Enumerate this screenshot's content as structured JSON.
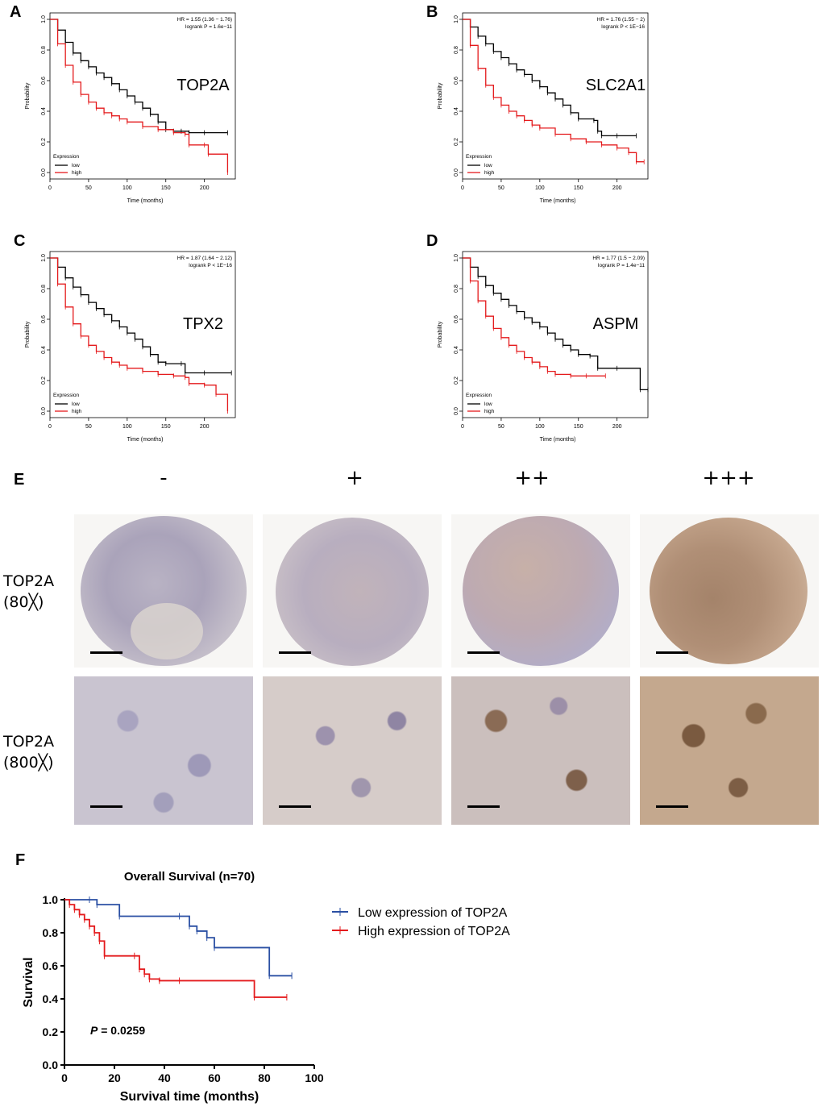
{
  "panels": {
    "A": "A",
    "B": "B",
    "C": "C",
    "D": "D",
    "E": "E",
    "F": "F"
  },
  "km_common": {
    "ylabel": "Probability",
    "xlabel": "Time (months)",
    "legend_title": "Expression",
    "legend_low": "low",
    "legend_high": "high",
    "yticks": [
      "0.0",
      "0.2",
      "0.4",
      "0.6",
      "0.8",
      "1.0"
    ],
    "xticks": [
      "0",
      "50",
      "100",
      "150",
      "200"
    ]
  },
  "chart_data": [
    {
      "type": "line",
      "panel": "A",
      "gene": "TOP2A",
      "hr_text": "HR = 1.55 (1.36 − 1.76)",
      "p_text": "logrank P = 1.6e−11",
      "xlabel": "Time (months)",
      "ylabel": "Probability",
      "xlim": [
        0,
        240
      ],
      "ylim": [
        0,
        1
      ],
      "series": [
        {
          "name": "low",
          "color": "#000000",
          "x": [
            0,
            10,
            20,
            30,
            40,
            50,
            60,
            70,
            80,
            90,
            100,
            110,
            120,
            130,
            140,
            150,
            160,
            170,
            180,
            200,
            230
          ],
          "y": [
            1.0,
            0.93,
            0.85,
            0.78,
            0.73,
            0.69,
            0.65,
            0.62,
            0.58,
            0.54,
            0.5,
            0.46,
            0.42,
            0.38,
            0.33,
            0.28,
            0.27,
            0.27,
            0.26,
            0.26,
            0.26
          ]
        },
        {
          "name": "high",
          "color": "#e41a1c",
          "x": [
            0,
            10,
            20,
            30,
            40,
            50,
            60,
            70,
            80,
            90,
            100,
            120,
            140,
            160,
            175,
            180,
            200,
            205,
            230
          ],
          "y": [
            1.0,
            0.84,
            0.7,
            0.59,
            0.51,
            0.46,
            0.42,
            0.39,
            0.37,
            0.35,
            0.33,
            0.3,
            0.28,
            0.26,
            0.25,
            0.18,
            0.18,
            0.12,
            0.0
          ]
        }
      ]
    },
    {
      "type": "line",
      "panel": "B",
      "gene": "SLC2A1",
      "hr_text": "HR = 1.76 (1.55 − 2)",
      "p_text": "logrank P < 1E−16",
      "xlabel": "Time (months)",
      "ylabel": "Probability",
      "xlim": [
        0,
        240
      ],
      "ylim": [
        0,
        1
      ],
      "series": [
        {
          "name": "low",
          "color": "#000000",
          "x": [
            0,
            10,
            20,
            30,
            40,
            50,
            60,
            70,
            80,
            90,
            100,
            110,
            120,
            130,
            140,
            150,
            170,
            175,
            180,
            200,
            225
          ],
          "y": [
            1.0,
            0.95,
            0.89,
            0.84,
            0.79,
            0.75,
            0.71,
            0.67,
            0.64,
            0.6,
            0.56,
            0.52,
            0.48,
            0.44,
            0.39,
            0.35,
            0.34,
            0.27,
            0.24,
            0.24,
            0.24
          ]
        },
        {
          "name": "high",
          "color": "#e41a1c",
          "x": [
            0,
            10,
            20,
            30,
            40,
            50,
            60,
            70,
            80,
            90,
            100,
            120,
            140,
            160,
            180,
            200,
            215,
            225,
            235
          ],
          "y": [
            1.0,
            0.83,
            0.68,
            0.57,
            0.49,
            0.44,
            0.4,
            0.37,
            0.34,
            0.31,
            0.29,
            0.25,
            0.22,
            0.2,
            0.18,
            0.16,
            0.13,
            0.07,
            0.07
          ]
        }
      ]
    },
    {
      "type": "line",
      "panel": "C",
      "gene": "TPX2",
      "hr_text": "HR = 1.87 (1.64 − 2.12)",
      "p_text": "logrank P < 1E−16",
      "xlabel": "Time (months)",
      "ylabel": "Probability",
      "xlim": [
        0,
        240
      ],
      "ylim": [
        0,
        1
      ],
      "series": [
        {
          "name": "low",
          "color": "#000000",
          "x": [
            0,
            10,
            20,
            30,
            40,
            50,
            60,
            70,
            80,
            90,
            100,
            110,
            120,
            130,
            140,
            150,
            170,
            175,
            200,
            235
          ],
          "y": [
            1.0,
            0.94,
            0.87,
            0.81,
            0.76,
            0.71,
            0.67,
            0.63,
            0.59,
            0.55,
            0.51,
            0.47,
            0.42,
            0.37,
            0.32,
            0.31,
            0.31,
            0.25,
            0.25,
            0.25
          ]
        },
        {
          "name": "high",
          "color": "#e41a1c",
          "x": [
            0,
            10,
            20,
            30,
            40,
            50,
            60,
            70,
            80,
            90,
            100,
            120,
            140,
            160,
            175,
            180,
            200,
            215,
            230
          ],
          "y": [
            1.0,
            0.83,
            0.68,
            0.57,
            0.49,
            0.43,
            0.39,
            0.35,
            0.32,
            0.3,
            0.28,
            0.26,
            0.24,
            0.23,
            0.22,
            0.18,
            0.17,
            0.11,
            0.0
          ]
        }
      ]
    },
    {
      "type": "line",
      "panel": "D",
      "gene": "ASPM",
      "hr_text": "HR = 1.77 (1.5 − 2.09)",
      "p_text": "logrank P = 1.4e−11",
      "xlabel": "Time (months)",
      "ylabel": "Probability",
      "xlim": [
        0,
        240
      ],
      "ylim": [
        0,
        1
      ],
      "series": [
        {
          "name": "low",
          "color": "#000000",
          "x": [
            0,
            10,
            20,
            30,
            40,
            50,
            60,
            70,
            80,
            90,
            100,
            110,
            120,
            130,
            140,
            150,
            165,
            175,
            200,
            230,
            240
          ],
          "y": [
            1.0,
            0.94,
            0.88,
            0.82,
            0.77,
            0.73,
            0.69,
            0.65,
            0.61,
            0.58,
            0.55,
            0.51,
            0.47,
            0.43,
            0.4,
            0.37,
            0.36,
            0.28,
            0.28,
            0.14,
            0.14
          ]
        },
        {
          "name": "high",
          "color": "#e41a1c",
          "x": [
            0,
            10,
            20,
            30,
            40,
            50,
            60,
            70,
            80,
            90,
            100,
            110,
            120,
            140,
            160,
            185
          ],
          "y": [
            1.0,
            0.85,
            0.72,
            0.62,
            0.54,
            0.48,
            0.43,
            0.39,
            0.35,
            0.32,
            0.29,
            0.26,
            0.24,
            0.23,
            0.23,
            0.23
          ]
        }
      ]
    },
    {
      "type": "line",
      "panel": "F",
      "title": "Overall Survival (n=70)",
      "xlabel": "Survival time (months)",
      "ylabel": "Survival",
      "xlim": [
        0,
        100
      ],
      "ylim": [
        0,
        1
      ],
      "xticks": [
        "0",
        "20",
        "40",
        "60",
        "80",
        "100"
      ],
      "yticks": [
        "0.0",
        "0.2",
        "0.4",
        "0.6",
        "0.8",
        "1.0"
      ],
      "p_label": "P",
      "p_value": " = 0.0259",
      "legend_low": "Low expression of TOP2A",
      "legend_high": "High expression of TOP2A",
      "series": [
        {
          "name": "Low expression of TOP2A",
          "color": "#2a4fa3",
          "x": [
            0,
            10,
            13,
            22,
            46,
            50,
            53,
            57,
            60,
            82,
            91
          ],
          "y": [
            1.0,
            1.0,
            0.97,
            0.9,
            0.9,
            0.84,
            0.81,
            0.77,
            0.71,
            0.54,
            0.54
          ]
        },
        {
          "name": "High expression of TOP2A",
          "color": "#e41a1c",
          "x": [
            0,
            2,
            4,
            6,
            8,
            10,
            12,
            14,
            16,
            28,
            30,
            32,
            34,
            38,
            46,
            76,
            89
          ],
          "y": [
            1.0,
            0.97,
            0.94,
            0.91,
            0.88,
            0.84,
            0.8,
            0.75,
            0.66,
            0.66,
            0.58,
            0.55,
            0.52,
            0.51,
            0.51,
            0.41,
            0.41
          ]
        }
      ]
    }
  ],
  "ihc": {
    "grades": [
      "-",
      "+",
      "++",
      "+++"
    ],
    "row1_label": [
      "TOP2A",
      "(80╳)"
    ],
    "row2_label": [
      "TOP2A",
      "(800╳)"
    ]
  }
}
